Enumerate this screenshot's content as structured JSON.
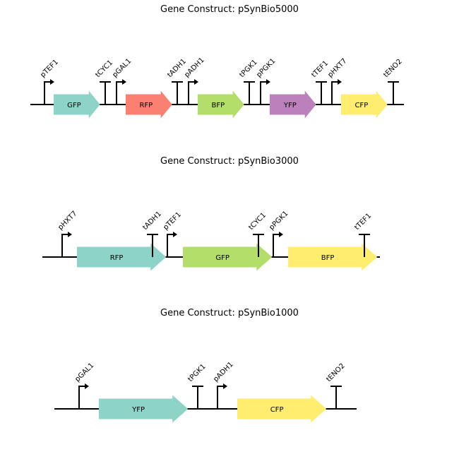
{
  "constructs": [
    {
      "title": "Gene Construct: pSynBio5000",
      "parts": [
        {
          "type": "promoter",
          "label": "pTEF1"
        },
        {
          "type": "cds",
          "label": "GFP",
          "color": "#8dd3c7"
        },
        {
          "type": "terminator",
          "label": "tCYC1"
        },
        {
          "type": "promoter",
          "label": "pGAL1"
        },
        {
          "type": "cds",
          "label": "RFP",
          "color": "#fb8072"
        },
        {
          "type": "terminator",
          "label": "tADH1"
        },
        {
          "type": "promoter",
          "label": "pADH1"
        },
        {
          "type": "cds",
          "label": "BFP",
          "color": "#b3de69"
        },
        {
          "type": "terminator",
          "label": "tPGK1"
        },
        {
          "type": "promoter",
          "label": "pPGK1"
        },
        {
          "type": "cds",
          "label": "YFP",
          "color": "#bc80bd"
        },
        {
          "type": "terminator",
          "label": "tTEF1"
        },
        {
          "type": "promoter",
          "label": "pHXT7"
        },
        {
          "type": "cds",
          "label": "CFP",
          "color": "#ffed6f"
        },
        {
          "type": "terminator",
          "label": "tENO2"
        }
      ]
    },
    {
      "title": "Gene Construct: pSynBio3000",
      "parts": [
        {
          "type": "promoter",
          "label": "pHXT7"
        },
        {
          "type": "cds",
          "label": "RFP",
          "color": "#8dd3c7"
        },
        {
          "type": "terminator",
          "label": "tADH1"
        },
        {
          "type": "promoter",
          "label": "pTEF1"
        },
        {
          "type": "cds",
          "label": "GFP",
          "color": "#b3de69"
        },
        {
          "type": "terminator",
          "label": "tCYC1"
        },
        {
          "type": "promoter",
          "label": "pPGK1"
        },
        {
          "type": "cds",
          "label": "BFP",
          "color": "#ffed6f"
        },
        {
          "type": "terminator",
          "label": "tTEF1"
        }
      ]
    },
    {
      "title": "Gene Construct: pSynBio1000",
      "parts": [
        {
          "type": "promoter",
          "label": "pGAL1"
        },
        {
          "type": "cds",
          "label": "YFP",
          "color": "#8dd3c7"
        },
        {
          "type": "terminator",
          "label": "tPGK1"
        },
        {
          "type": "promoter",
          "label": "pADH1"
        },
        {
          "type": "cds",
          "label": "CFP",
          "color": "#ffed6f"
        },
        {
          "type": "terminator",
          "label": "tENO2"
        }
      ]
    }
  ]
}
